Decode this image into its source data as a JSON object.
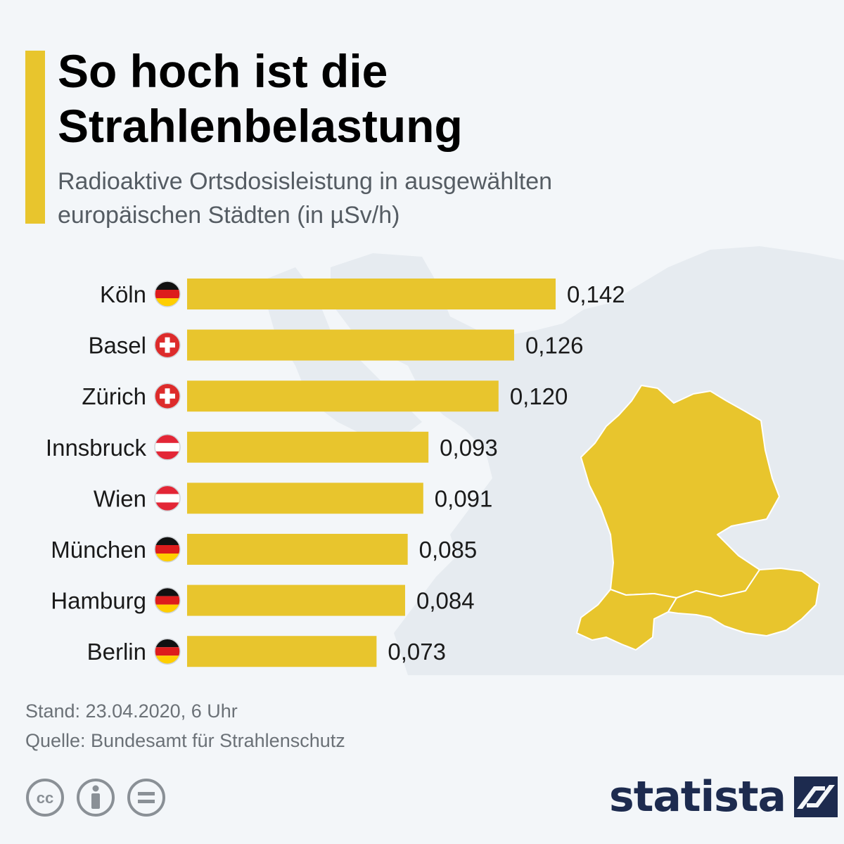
{
  "header": {
    "title_line1": "So hoch ist die",
    "title_line2": "Strahlenbelastung",
    "subtitle_line1": "Radioaktive Ortsdosisleistung in ausgewählten",
    "subtitle_line2": "europäischen Städten (in µSv/h)"
  },
  "chart_data": {
    "type": "bar",
    "orientation": "horizontal",
    "title": "So hoch ist die Strahlenbelastung",
    "subtitle": "Radioaktive Ortsdosisleistung in ausgewählten europäischen Städten (in µSv/h)",
    "unit": "µSv/h",
    "xlim": [
      0,
      0.15
    ],
    "grid": false,
    "bar_color": "#e8c52d",
    "categories": [
      "Köln",
      "Basel",
      "Zürich",
      "Innsbruck",
      "Wien",
      "München",
      "Hamburg",
      "Berlin"
    ],
    "countries": [
      "de",
      "ch",
      "ch",
      "at",
      "at",
      "de",
      "de",
      "de"
    ],
    "values": [
      0.142,
      0.126,
      0.12,
      0.093,
      0.091,
      0.085,
      0.084,
      0.073
    ],
    "value_labels": [
      "0,142",
      "0,126",
      "0,120",
      "0,093",
      "0,091",
      "0,085",
      "0,084",
      "0,073"
    ]
  },
  "footer": {
    "date": "Stand: 23.04.2020, 6 Uhr",
    "source": "Quelle: Bundesamt für Strahlenschutz"
  },
  "branding": {
    "logo_text": "statista",
    "logo_color": "#1d2b4f",
    "license_icons": [
      "cc-icon",
      "attribution-icon",
      "no-derivatives-icon"
    ]
  },
  "colors": {
    "accent": "#e8c52d",
    "background": "#f3f6f9",
    "map_fill": "#e8c52d",
    "map_background": "#e7ecf1"
  }
}
